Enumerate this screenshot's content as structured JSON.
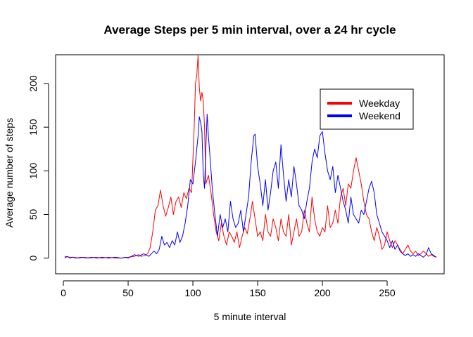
{
  "chart_data": {
    "type": "line",
    "title": "Average Steps per 5 min interval, over a 24 hr cycle",
    "xlabel": "5 minute interval",
    "ylabel": "Average number of steps",
    "xlim": [
      -6,
      294
    ],
    "ylim": [
      -18,
      233
    ],
    "x_ticks": [
      0,
      50,
      100,
      150,
      200,
      250
    ],
    "y_ticks": [
      0,
      50,
      100,
      150,
      200
    ],
    "legend_position": "top-right",
    "series": [
      {
        "name": "Weekday",
        "color": "#ff0000",
        "points": [
          [
            1,
            2
          ],
          [
            5,
            1
          ],
          [
            8,
            1
          ],
          [
            12,
            0
          ],
          [
            16,
            1
          ],
          [
            20,
            0
          ],
          [
            25,
            1
          ],
          [
            30,
            0
          ],
          [
            35,
            1
          ],
          [
            40,
            0
          ],
          [
            45,
            0
          ],
          [
            50,
            1
          ],
          [
            55,
            2
          ],
          [
            58,
            4
          ],
          [
            60,
            2
          ],
          [
            63,
            3
          ],
          [
            65,
            5
          ],
          [
            67,
            12
          ],
          [
            69,
            30
          ],
          [
            71,
            55
          ],
          [
            73,
            60
          ],
          [
            75,
            78
          ],
          [
            77,
            60
          ],
          [
            79,
            48
          ],
          [
            81,
            58
          ],
          [
            83,
            70
          ],
          [
            85,
            50
          ],
          [
            87,
            65
          ],
          [
            89,
            70
          ],
          [
            91,
            58
          ],
          [
            93,
            75
          ],
          [
            95,
            68
          ],
          [
            97,
            80
          ],
          [
            99,
            75
          ],
          [
            101,
            150
          ],
          [
            102,
            200
          ],
          [
            103,
            210
          ],
          [
            104,
            232
          ],
          [
            105,
            195
          ],
          [
            106,
            180
          ],
          [
            107,
            190
          ],
          [
            108,
            180
          ],
          [
            109,
            150
          ],
          [
            110,
            85
          ],
          [
            112,
            95
          ],
          [
            114,
            75
          ],
          [
            116,
            50
          ],
          [
            118,
            30
          ],
          [
            120,
            20
          ],
          [
            122,
            40
          ],
          [
            124,
            25
          ],
          [
            126,
            15
          ],
          [
            128,
            30
          ],
          [
            130,
            25
          ],
          [
            132,
            18
          ],
          [
            134,
            30
          ],
          [
            136,
            12
          ],
          [
            138,
            25
          ],
          [
            140,
            35
          ],
          [
            142,
            28
          ],
          [
            144,
            45
          ],
          [
            146,
            65
          ],
          [
            148,
            45
          ],
          [
            150,
            25
          ],
          [
            152,
            30
          ],
          [
            154,
            20
          ],
          [
            156,
            50
          ],
          [
            158,
            30
          ],
          [
            160,
            25
          ],
          [
            162,
            45
          ],
          [
            164,
            35
          ],
          [
            166,
            20
          ],
          [
            168,
            45
          ],
          [
            170,
            30
          ],
          [
            172,
            25
          ],
          [
            174,
            50
          ],
          [
            176,
            15
          ],
          [
            178,
            30
          ],
          [
            180,
            45
          ],
          [
            182,
            25
          ],
          [
            184,
            30
          ],
          [
            186,
            55
          ],
          [
            188,
            40
          ],
          [
            190,
            30
          ],
          [
            192,
            70
          ],
          [
            194,
            45
          ],
          [
            196,
            30
          ],
          [
            198,
            25
          ],
          [
            200,
            35
          ],
          [
            202,
            30
          ],
          [
            204,
            60
          ],
          [
            206,
            35
          ],
          [
            208,
            40
          ],
          [
            210,
            55
          ],
          [
            212,
            40
          ],
          [
            214,
            70
          ],
          [
            216,
            80
          ],
          [
            218,
            60
          ],
          [
            220,
            85
          ],
          [
            222,
            80
          ],
          [
            224,
            100
          ],
          [
            226,
            115
          ],
          [
            228,
            100
          ],
          [
            230,
            85
          ],
          [
            232,
            65
          ],
          [
            234,
            50
          ],
          [
            236,
            45
          ],
          [
            238,
            30
          ],
          [
            240,
            20
          ],
          [
            242,
            35
          ],
          [
            244,
            25
          ],
          [
            246,
            10
          ],
          [
            248,
            15
          ],
          [
            250,
            30
          ],
          [
            252,
            20
          ],
          [
            254,
            12
          ],
          [
            256,
            20
          ],
          [
            258,
            15
          ],
          [
            260,
            10
          ],
          [
            262,
            5
          ],
          [
            264,
            10
          ],
          [
            266,
            15
          ],
          [
            268,
            8
          ],
          [
            270,
            5
          ],
          [
            272,
            8
          ],
          [
            274,
            3
          ],
          [
            276,
            5
          ],
          [
            278,
            8
          ],
          [
            280,
            5
          ],
          [
            282,
            2
          ],
          [
            284,
            4
          ],
          [
            286,
            2
          ],
          [
            288,
            1
          ]
        ]
      },
      {
        "name": "Weekend",
        "color": "#0000ff",
        "points": [
          [
            1,
            0
          ],
          [
            3,
            2
          ],
          [
            5,
            0
          ],
          [
            7,
            1
          ],
          [
            10,
            0
          ],
          [
            14,
            1
          ],
          [
            18,
            0
          ],
          [
            22,
            1
          ],
          [
            26,
            0
          ],
          [
            30,
            1
          ],
          [
            35,
            0
          ],
          [
            40,
            1
          ],
          [
            45,
            0
          ],
          [
            48,
            1
          ],
          [
            50,
            0
          ],
          [
            55,
            4
          ],
          [
            58,
            2
          ],
          [
            62,
            5
          ],
          [
            66,
            2
          ],
          [
            70,
            8
          ],
          [
            72,
            5
          ],
          [
            74,
            10
          ],
          [
            76,
            25
          ],
          [
            78,
            15
          ],
          [
            80,
            18
          ],
          [
            82,
            12
          ],
          [
            84,
            20
          ],
          [
            86,
            15
          ],
          [
            88,
            30
          ],
          [
            90,
            18
          ],
          [
            92,
            25
          ],
          [
            94,
            40
          ],
          [
            96,
            60
          ],
          [
            98,
            90
          ],
          [
            100,
            85
          ],
          [
            102,
            110
          ],
          [
            104,
            140
          ],
          [
            105,
            162
          ],
          [
            106,
            155
          ],
          [
            107,
            145
          ],
          [
            108,
            95
          ],
          [
            109,
            80
          ],
          [
            110,
            125
          ],
          [
            111,
            165
          ],
          [
            112,
            140
          ],
          [
            113,
            120
          ],
          [
            115,
            80
          ],
          [
            117,
            50
          ],
          [
            119,
            25
          ],
          [
            121,
            50
          ],
          [
            123,
            35
          ],
          [
            125,
            45
          ],
          [
            127,
            30
          ],
          [
            129,
            65
          ],
          [
            131,
            45
          ],
          [
            133,
            35
          ],
          [
            135,
            40
          ],
          [
            137,
            55
          ],
          [
            139,
            30
          ],
          [
            141,
            50
          ],
          [
            143,
            70
          ],
          [
            145,
            110
          ],
          [
            147,
            140
          ],
          [
            148,
            142
          ],
          [
            150,
            105
          ],
          [
            152,
            85
          ],
          [
            154,
            60
          ],
          [
            156,
            90
          ],
          [
            158,
            55
          ],
          [
            160,
            75
          ],
          [
            162,
            100
          ],
          [
            164,
            110
          ],
          [
            166,
            80
          ],
          [
            168,
            130
          ],
          [
            170,
            95
          ],
          [
            172,
            65
          ],
          [
            174,
            90
          ],
          [
            176,
            70
          ],
          [
            178,
            105
          ],
          [
            180,
            85
          ],
          [
            182,
            60
          ],
          [
            184,
            55
          ],
          [
            186,
            45
          ],
          [
            188,
            65
          ],
          [
            190,
            80
          ],
          [
            192,
            110
          ],
          [
            194,
            125
          ],
          [
            196,
            115
          ],
          [
            198,
            140
          ],
          [
            200,
            145
          ],
          [
            202,
            120
          ],
          [
            204,
            100
          ],
          [
            206,
            90
          ],
          [
            208,
            105
          ],
          [
            210,
            75
          ],
          [
            212,
            95
          ],
          [
            214,
            80
          ],
          [
            216,
            65
          ],
          [
            218,
            55
          ],
          [
            220,
            40
          ],
          [
            222,
            70
          ],
          [
            224,
            50
          ],
          [
            226,
            45
          ],
          [
            228,
            40
          ],
          [
            230,
            55
          ],
          [
            232,
            50
          ],
          [
            234,
            65
          ],
          [
            236,
            80
          ],
          [
            238,
            88
          ],
          [
            240,
            75
          ],
          [
            242,
            50
          ],
          [
            244,
            40
          ],
          [
            246,
            30
          ],
          [
            248,
            25
          ],
          [
            250,
            20
          ],
          [
            252,
            12
          ],
          [
            254,
            20
          ],
          [
            256,
            10
          ],
          [
            258,
            15
          ],
          [
            260,
            8
          ],
          [
            262,
            5
          ],
          [
            264,
            3
          ],
          [
            266,
            5
          ],
          [
            268,
            2
          ],
          [
            270,
            4
          ],
          [
            272,
            2
          ],
          [
            274,
            5
          ],
          [
            276,
            3
          ],
          [
            278,
            1
          ],
          [
            280,
            4
          ],
          [
            282,
            12
          ],
          [
            284,
            5
          ],
          [
            286,
            3
          ],
          [
            288,
            1
          ]
        ]
      }
    ]
  }
}
